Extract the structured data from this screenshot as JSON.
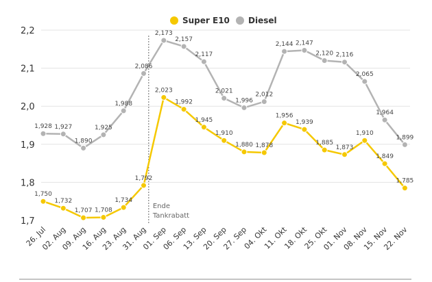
{
  "chart_data": {
    "type": "line",
    "title": "",
    "xlabel": "",
    "ylabel": "",
    "ylim": [
      1.7,
      2.2
    ],
    "yticks": [
      "1,7",
      "1,8",
      "1,9",
      "2,0",
      "2,1",
      "2,2"
    ],
    "ytick_values": [
      1.7,
      1.8,
      1.9,
      2.0,
      2.1,
      2.2
    ],
    "categories": [
      "26. Jul",
      "02. Aug",
      "09. Aug",
      "16. Aug",
      "23. Aug",
      "31. Aug",
      "01. Sep",
      "06. Sep",
      "13. Sep",
      "20. Sep",
      "27. Sep",
      "04. Okt",
      "11. Okt",
      "18. Okt",
      "25. Okt",
      "01. Nov",
      "08. Nov",
      "15. Nov",
      "22. Nov"
    ],
    "grid": true,
    "legend_position": "top-center",
    "series": [
      {
        "name": "Super E10",
        "color": "#f5c800",
        "values": [
          1.75,
          1.732,
          1.707,
          1.708,
          1.734,
          1.792,
          2.023,
          1.992,
          1.945,
          1.91,
          1.88,
          1.878,
          1.956,
          1.939,
          1.885,
          1.873,
          1.91,
          1.849,
          1.785
        ],
        "labels": [
          "1,750",
          "1,732",
          "1,707",
          "1,708",
          "1,734",
          "1,792",
          "2,023",
          "1,992",
          "1,945",
          "1,910",
          "1,880",
          "1,878",
          "1,956",
          "1,939",
          "1,885",
          "1,873",
          "1,910",
          "1,849",
          "1,785"
        ]
      },
      {
        "name": "Diesel",
        "color": "#b3b3b3",
        "values": [
          1.928,
          1.927,
          1.89,
          1.925,
          1.988,
          2.086,
          2.173,
          2.157,
          2.117,
          2.021,
          1.996,
          2.012,
          2.144,
          2.147,
          2.12,
          2.116,
          2.065,
          1.964,
          1.899
        ],
        "labels": [
          "1,928",
          "1,927",
          "1,890",
          "1,925",
          "1,988",
          "2,086",
          "2,173",
          "2,157",
          "2,117",
          "2,021",
          "1,996",
          "2,012",
          "2,144",
          "2,147",
          "2,120",
          "2,116",
          "2,065",
          "1,964",
          "1,899"
        ]
      }
    ],
    "annotation": {
      "after_category": "31. Aug",
      "lines": [
        "Ende",
        "Tankrabatt"
      ]
    }
  }
}
